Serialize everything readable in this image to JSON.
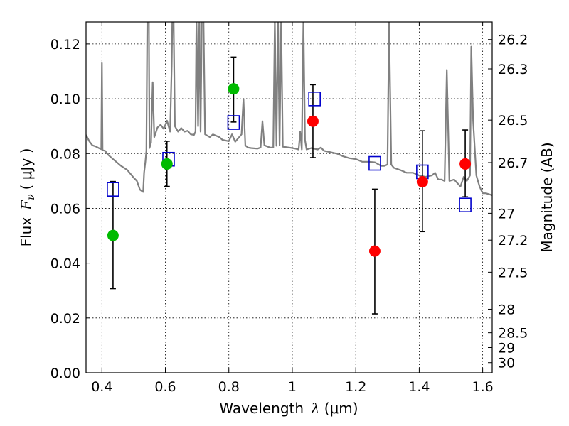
{
  "chart_data": {
    "type": "scatter",
    "xlabel": {
      "text": "Wavelength",
      "symbol": "λ",
      "unit": "(μm)"
    },
    "ylabel": {
      "text": "Flux",
      "symbol": "F",
      "subscript": "ν",
      "unit": "( μJy )"
    },
    "ylabel_right": "Magnitude (AB)",
    "xlim": [
      0.35,
      1.63
    ],
    "ylim": [
      0.0,
      0.128
    ],
    "grid": true,
    "x_ticks": [
      0.4,
      0.6,
      0.8,
      1.0,
      1.2,
      1.4,
      1.6
    ],
    "x_tick_labels": [
      "0.4",
      "0.6",
      "0.8",
      "1",
      "1.2",
      "1.4",
      "1.6"
    ],
    "y_ticks": [
      0.0,
      0.02,
      0.04,
      0.06,
      0.08,
      0.1,
      0.12
    ],
    "y_tick_labels": [
      "0.00",
      "0.02",
      "0.04",
      "0.06",
      "0.08",
      "0.10",
      "0.12"
    ],
    "right_ticks": [
      {
        "label": "26.2",
        "flux": 0.1216
      },
      {
        "label": "26.3",
        "flux": 0.1109
      },
      {
        "label": "26.5",
        "flux": 0.0922
      },
      {
        "label": "26.7",
        "flux": 0.0767
      },
      {
        "label": "27",
        "flux": 0.0582
      },
      {
        "label": "27.2",
        "flux": 0.0484
      },
      {
        "label": "27.5",
        "flux": 0.0367
      },
      {
        "label": "28",
        "flux": 0.0232
      },
      {
        "label": "28.5",
        "flux": 0.0146
      },
      {
        "label": "29",
        "flux": 0.0092
      },
      {
        "label": "30",
        "flux": 0.0037
      }
    ],
    "colors": {
      "template": "#808080",
      "model_points": "#0000cc",
      "green_points": "#00bb00",
      "red_points": "#ff0000",
      "errorbars": "#000000",
      "grid": "#000000"
    },
    "series": [
      {
        "kind": "line",
        "points": [
          [
            0.35,
            0.0868
          ],
          [
            0.36,
            0.0845
          ],
          [
            0.37,
            0.083
          ],
          [
            0.38,
            0.0826
          ],
          [
            0.39,
            0.082
          ],
          [
            0.398,
            0.0816
          ],
          [
            0.4,
            0.113
          ],
          [
            0.402,
            0.0812
          ],
          [
            0.41,
            0.081
          ],
          [
            0.42,
            0.0795
          ],
          [
            0.44,
            0.0775
          ],
          [
            0.46,
            0.0755
          ],
          [
            0.48,
            0.074
          ],
          [
            0.5,
            0.0712
          ],
          [
            0.51,
            0.07
          ],
          [
            0.52,
            0.0668
          ],
          [
            0.53,
            0.066
          ],
          [
            0.533,
            0.073
          ],
          [
            0.537,
            0.077
          ],
          [
            0.54,
            0.081
          ],
          [
            0.543,
            0.129
          ],
          [
            0.548,
            0.129
          ],
          [
            0.55,
            0.082
          ],
          [
            0.555,
            0.084
          ],
          [
            0.56,
            0.106
          ],
          [
            0.565,
            0.086
          ],
          [
            0.575,
            0.0895
          ],
          [
            0.585,
            0.0905
          ],
          [
            0.595,
            0.089
          ],
          [
            0.605,
            0.092
          ],
          [
            0.615,
            0.088
          ],
          [
            0.62,
            0.112
          ],
          [
            0.622,
            0.129
          ],
          [
            0.626,
            0.129
          ],
          [
            0.63,
            0.09
          ],
          [
            0.64,
            0.088
          ],
          [
            0.65,
            0.0893
          ],
          [
            0.66,
            0.088
          ],
          [
            0.67,
            0.0883
          ],
          [
            0.68,
            0.087
          ],
          [
            0.69,
            0.0868
          ],
          [
            0.695,
            0.088
          ],
          [
            0.698,
            0.129
          ],
          [
            0.703,
            0.09
          ],
          [
            0.707,
            0.129
          ],
          [
            0.711,
            0.088
          ],
          [
            0.715,
            0.129
          ],
          [
            0.72,
            0.129
          ],
          [
            0.725,
            0.087
          ],
          [
            0.74,
            0.086
          ],
          [
            0.75,
            0.087
          ],
          [
            0.77,
            0.086
          ],
          [
            0.78,
            0.085
          ],
          [
            0.8,
            0.0845
          ],
          [
            0.81,
            0.087
          ],
          [
            0.82,
            0.0843
          ],
          [
            0.84,
            0.087
          ],
          [
            0.846,
            0.1
          ],
          [
            0.852,
            0.083
          ],
          [
            0.86,
            0.0822
          ],
          [
            0.87,
            0.082
          ],
          [
            0.89,
            0.0818
          ],
          [
            0.9,
            0.0822
          ],
          [
            0.906,
            0.0918
          ],
          [
            0.912,
            0.083
          ],
          [
            0.93,
            0.0822
          ],
          [
            0.94,
            0.0822
          ],
          [
            0.945,
            0.129
          ],
          [
            0.95,
            0.0828
          ],
          [
            0.955,
            0.129
          ],
          [
            0.96,
            0.083
          ],
          [
            0.965,
            0.129
          ],
          [
            0.97,
            0.0825
          ],
          [
            0.99,
            0.0822
          ],
          [
            1.0,
            0.082
          ],
          [
            1.01,
            0.0818
          ],
          [
            1.02,
            0.0815
          ],
          [
            1.025,
            0.088
          ],
          [
            1.03,
            0.0815
          ],
          [
            1.035,
            0.129
          ],
          [
            1.04,
            0.085
          ],
          [
            1.045,
            0.0815
          ],
          [
            1.06,
            0.082
          ],
          [
            1.08,
            0.0815
          ],
          [
            1.09,
            0.0822
          ],
          [
            1.1,
            0.081
          ],
          [
            1.12,
            0.0805
          ],
          [
            1.14,
            0.08
          ],
          [
            1.16,
            0.079
          ],
          [
            1.18,
            0.0783
          ],
          [
            1.2,
            0.078
          ],
          [
            1.22,
            0.077
          ],
          [
            1.24,
            0.077
          ],
          [
            1.26,
            0.0768
          ],
          [
            1.28,
            0.0755
          ],
          [
            1.29,
            0.0755
          ],
          [
            1.3,
            0.076
          ],
          [
            1.305,
            0.129
          ],
          [
            1.312,
            0.076
          ],
          [
            1.32,
            0.0748
          ],
          [
            1.34,
            0.074
          ],
          [
            1.36,
            0.073
          ],
          [
            1.38,
            0.073
          ],
          [
            1.4,
            0.072
          ],
          [
            1.42,
            0.0715
          ],
          [
            1.44,
            0.072
          ],
          [
            1.45,
            0.073
          ],
          [
            1.46,
            0.0705
          ],
          [
            1.47,
            0.0705
          ],
          [
            1.48,
            0.07
          ],
          [
            1.487,
            0.1105
          ],
          [
            1.495,
            0.07
          ],
          [
            1.51,
            0.0705
          ],
          [
            1.53,
            0.068
          ],
          [
            1.54,
            0.0715
          ],
          [
            1.55,
            0.07
          ],
          [
            1.56,
            0.072
          ],
          [
            1.564,
            0.119
          ],
          [
            1.57,
            0.092
          ],
          [
            1.58,
            0.072
          ],
          [
            1.59,
            0.068
          ],
          [
            1.6,
            0.0655
          ],
          [
            1.61,
            0.0655
          ],
          [
            1.63,
            0.0648
          ]
        ]
      },
      {
        "kind": "markers",
        "marker": "open-square",
        "points": [
          [
            0.435,
            0.0668
          ],
          [
            0.61,
            0.0778
          ],
          [
            0.815,
            0.0912
          ],
          [
            1.07,
            0.0998
          ],
          [
            1.26,
            0.0763
          ],
          [
            1.41,
            0.0732
          ],
          [
            1.545,
            0.0611
          ]
        ]
      },
      {
        "kind": "markers",
        "marker": "filled-circle",
        "color_key": "green_points",
        "points": [
          {
            "x": 0.435,
            "y": 0.0501,
            "err_lo": 0.0307,
            "err_hi": 0.0698
          },
          {
            "x": 0.605,
            "y": 0.0762,
            "err_lo": 0.068,
            "err_hi": 0.0845
          },
          {
            "x": 0.815,
            "y": 0.1036,
            "err_lo": 0.0915,
            "err_hi": 0.1152
          }
        ]
      },
      {
        "kind": "markers",
        "marker": "filled-circle",
        "color_key": "red_points",
        "points": [
          {
            "x": 1.065,
            "y": 0.0918,
            "err_lo": 0.0785,
            "err_hi": 0.1051
          },
          {
            "x": 1.26,
            "y": 0.0444,
            "err_lo": 0.0215,
            "err_hi": 0.067
          },
          {
            "x": 1.41,
            "y": 0.0697,
            "err_lo": 0.0515,
            "err_hi": 0.0883
          },
          {
            "x": 1.545,
            "y": 0.0762,
            "err_lo": 0.0642,
            "err_hi": 0.0886
          }
        ]
      }
    ]
  }
}
